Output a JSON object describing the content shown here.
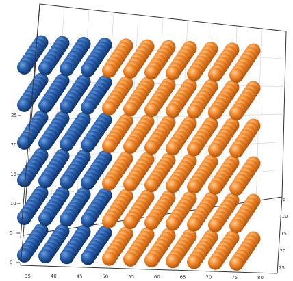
{
  "chart_data": {
    "type": "scatter",
    "variant": "3d-lattice",
    "title": "",
    "xlabel": "",
    "ylabel": "",
    "zlabel": "",
    "grid": true,
    "z_ticks": [
      "0",
      "5",
      "10",
      "15",
      "20",
      "25"
    ],
    "x_ticks": [
      "35",
      "40",
      "45",
      "50",
      "55",
      "60",
      "65",
      "70",
      "75",
      "80"
    ],
    "y_ticks": [
      "5",
      "10",
      "15",
      "20",
      "25"
    ],
    "zlim": [
      0,
      27
    ],
    "series": [
      {
        "color": "#1d4f96",
        "layers": 6,
        "rows": 8,
        "columns_across": 4
      },
      {
        "color": "#f07f1f",
        "layers": 6,
        "rows": 8,
        "columns_across": 7
      }
    ]
  }
}
